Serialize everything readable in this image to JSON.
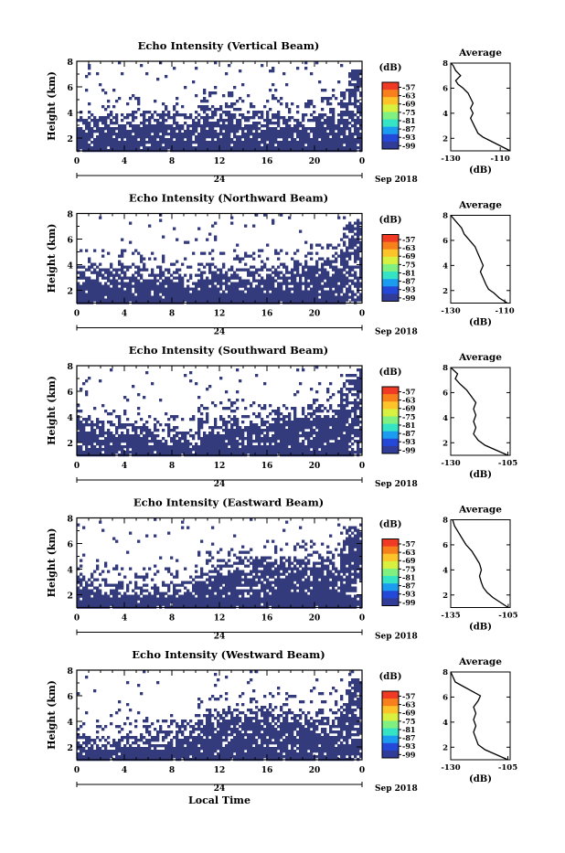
{
  "panels": [
    {
      "title": "Echo Intensity (Vertical Beam)",
      "avg_title": "Average",
      "avg_xticks": [
        "-130",
        "-110"
      ],
      "avg_xlim": [
        -130,
        -106
      ],
      "avg_profile": [
        [
          -106,
          1.0
        ],
        [
          -110,
          1.4
        ],
        [
          -114,
          1.8
        ],
        [
          -117,
          2.1
        ],
        [
          -119,
          2.4
        ],
        [
          -120,
          2.8
        ],
        [
          -121,
          3.2
        ],
        [
          -122,
          3.6
        ],
        [
          -121,
          4.0
        ],
        [
          -122,
          4.4
        ],
        [
          -121,
          4.8
        ],
        [
          -122,
          5.2
        ],
        [
          -123,
          5.6
        ],
        [
          -125,
          6.0
        ],
        [
          -127,
          6.3
        ],
        [
          -128,
          6.6
        ],
        [
          -126,
          7.0
        ],
        [
          -128,
          7.4
        ],
        [
          -129,
          7.8
        ],
        [
          -130,
          8.0
        ]
      ]
    },
    {
      "title": "Echo Intensity (Northward Beam)",
      "avg_title": "Average",
      "avg_xticks": [
        "-130",
        "-110"
      ],
      "avg_xlim": [
        -130,
        -108
      ],
      "avg_profile": [
        [
          -109,
          1.0
        ],
        [
          -112,
          1.4
        ],
        [
          -114,
          1.8
        ],
        [
          -116,
          2.1
        ],
        [
          -117,
          2.5
        ],
        [
          -118,
          3.0
        ],
        [
          -119,
          3.5
        ],
        [
          -118,
          4.0
        ],
        [
          -119,
          4.5
        ],
        [
          -120,
          5.0
        ],
        [
          -121,
          5.5
        ],
        [
          -123,
          6.0
        ],
        [
          -125,
          6.5
        ],
        [
          -126,
          7.0
        ],
        [
          -128,
          7.5
        ],
        [
          -130,
          8.0
        ]
      ]
    },
    {
      "title": "Echo Intensity (Southward Beam)",
      "avg_title": "Average",
      "avg_xticks": [
        "-130",
        "-105"
      ],
      "avg_xlim": [
        -130,
        -104
      ],
      "avg_profile": [
        [
          -105,
          1.0
        ],
        [
          -110,
          1.4
        ],
        [
          -115,
          1.8
        ],
        [
          -118,
          2.2
        ],
        [
          -120,
          2.7
        ],
        [
          -119,
          3.2
        ],
        [
          -120,
          3.7
        ],
        [
          -119,
          4.2
        ],
        [
          -120,
          4.7
        ],
        [
          -119,
          5.2
        ],
        [
          -121,
          5.7
        ],
        [
          -123,
          6.2
        ],
        [
          -126,
          6.7
        ],
        [
          -128,
          7.1
        ],
        [
          -127,
          7.5
        ],
        [
          -130,
          8.0
        ]
      ]
    },
    {
      "title": "Echo Intensity (Eastward Beam)",
      "avg_title": "Average",
      "avg_xticks": [
        "-135",
        "-105"
      ],
      "avg_xlim": [
        -135,
        -104
      ],
      "avg_profile": [
        [
          -105,
          1.0
        ],
        [
          -109,
          1.4
        ],
        [
          -113,
          1.8
        ],
        [
          -116,
          2.2
        ],
        [
          -118,
          2.6
        ],
        [
          -119,
          3.0
        ],
        [
          -120,
          3.5
        ],
        [
          -119,
          4.0
        ],
        [
          -120,
          4.5
        ],
        [
          -122,
          5.0
        ],
        [
          -124,
          5.5
        ],
        [
          -127,
          6.0
        ],
        [
          -129,
          6.5
        ],
        [
          -131,
          7.0
        ],
        [
          -133,
          7.5
        ],
        [
          -134,
          8.0
        ]
      ]
    },
    {
      "title": "Echo Intensity (Westward Beam)",
      "avg_title": "Average",
      "avg_xticks": [
        "-130",
        "-105"
      ],
      "avg_xlim": [
        -130,
        -104
      ],
      "avg_profile": [
        [
          -105,
          1.0
        ],
        [
          -110,
          1.4
        ],
        [
          -115,
          1.8
        ],
        [
          -118,
          2.2
        ],
        [
          -119,
          2.7
        ],
        [
          -120,
          3.2
        ],
        [
          -119,
          3.7
        ],
        [
          -120,
          4.2
        ],
        [
          -119,
          4.7
        ],
        [
          -120,
          5.2
        ],
        [
          -118,
          5.7
        ],
        [
          -117,
          6.1
        ],
        [
          -120,
          6.4
        ],
        [
          -124,
          6.8
        ],
        [
          -128,
          7.2
        ],
        [
          -129,
          7.6
        ],
        [
          -130,
          8.0
        ]
      ]
    }
  ],
  "ylabel": "Height (km)",
  "yticks": [
    "2",
    "4",
    "6",
    "8"
  ],
  "xticks": [
    "0",
    "4",
    "8",
    "12",
    "16",
    "20",
    "0"
  ],
  "date_label": "24",
  "month_label": "Sep 2018",
  "colorbar_unit": "(dB)",
  "colorbar_labels": [
    "-57",
    "-63",
    "-69",
    "-75",
    "-81",
    "-87",
    "-93",
    "-99"
  ],
  "colorbar_colors": [
    "#f03a24",
    "#f8801c",
    "#fcc428",
    "#d8f040",
    "#80f080",
    "#34e4c4",
    "#1c9cf0",
    "#2448d8",
    "#303c98"
  ],
  "avg_unit": "(dB)",
  "footer_xlabel": "Local Time",
  "colors": {
    "echo": "#343b7c",
    "profile": "#000000"
  },
  "chart_data": {
    "type": "heatmap",
    "x_label": "Local Time",
    "x_ticks": [
      "0",
      "4",
      "8",
      "12",
      "16",
      "20",
      "0"
    ],
    "xlim": [
      0,
      24
    ],
    "y_label": "Height (km)",
    "ylim": [
      1,
      8
    ],
    "colorbar_unit": "(dB)",
    "colorbar_range": [
      -99,
      -57
    ]
  }
}
